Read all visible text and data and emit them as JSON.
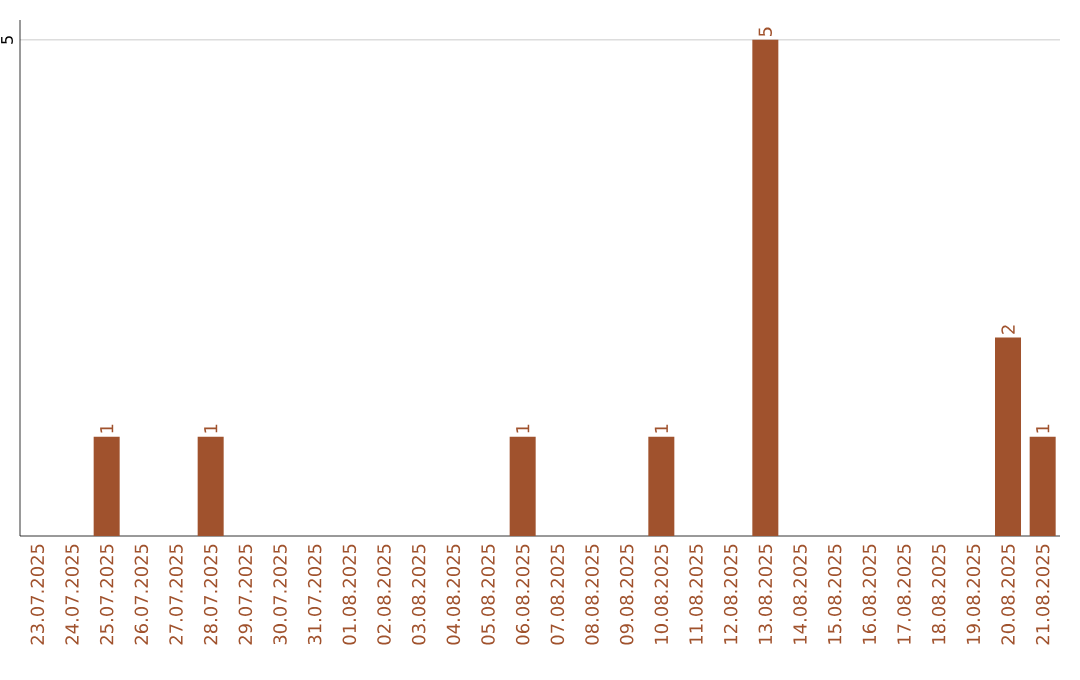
{
  "chart_data": {
    "type": "bar",
    "categories": [
      "23.07.2025",
      "24.07.2025",
      "25.07.2025",
      "26.07.2025",
      "27.07.2025",
      "28.07.2025",
      "29.07.2025",
      "30.07.2025",
      "31.07.2025",
      "01.08.2025",
      "02.08.2025",
      "03.08.2025",
      "04.08.2025",
      "05.08.2025",
      "06.08.2025",
      "07.08.2025",
      "08.08.2025",
      "09.08.2025",
      "10.08.2025",
      "11.08.2025",
      "12.08.2025",
      "13.08.2025",
      "14.08.2025",
      "15.08.2025",
      "16.08.2025",
      "17.08.2025",
      "18.08.2025",
      "19.08.2025",
      "20.08.2025",
      "21.08.2025"
    ],
    "values": [
      0,
      0,
      1,
      0,
      0,
      1,
      0,
      0,
      0,
      0,
      0,
      0,
      0,
      0,
      1,
      0,
      0,
      0,
      1,
      0,
      0,
      5,
      0,
      0,
      0,
      0,
      0,
      0,
      2,
      1
    ],
    "value_labels": [
      null,
      null,
      "1",
      null,
      null,
      "1",
      null,
      null,
      null,
      null,
      null,
      null,
      null,
      null,
      "1",
      null,
      null,
      null,
      "1",
      null,
      null,
      "5",
      null,
      null,
      null,
      null,
      null,
      null,
      "2",
      "1"
    ],
    "color": "#a0522d",
    "ylim": [
      0,
      5.2
    ],
    "yticks": [
      5
    ],
    "grid": "y"
  }
}
